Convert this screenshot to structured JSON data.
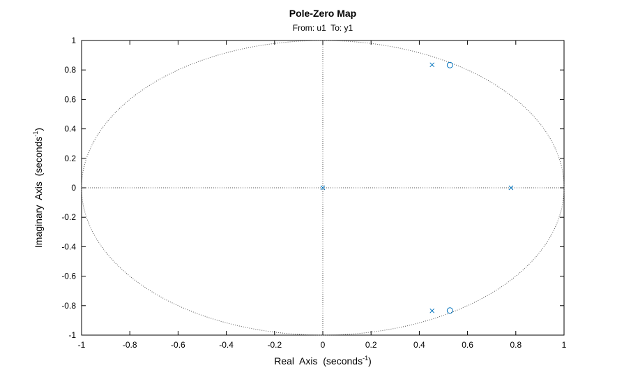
{
  "chart_data": {
    "type": "scatter",
    "title": "Pole-Zero Map",
    "subtitle": "From: u1  To: y1",
    "xlabel": {
      "text": "Real  Axis  (seconds",
      "superscript": "-1",
      "suffix": ")"
    },
    "ylabel": {
      "text": "Imaginary  Axis  (seconds",
      "superscript": "-1",
      "suffix": ")"
    },
    "xlim": [
      -1,
      1
    ],
    "ylim": [
      -1,
      1
    ],
    "xticks": [
      -1,
      -0.8,
      -0.6,
      -0.4,
      -0.2,
      0,
      0.2,
      0.4,
      0.6,
      0.8,
      1
    ],
    "xtick_labels": [
      "-1",
      "-0.8",
      "-0.6",
      "-0.4",
      "-0.2",
      "0",
      "0.2",
      "0.4",
      "0.6",
      "0.8",
      "1"
    ],
    "yticks": [
      -1,
      -0.8,
      -0.6,
      -0.4,
      -0.2,
      0,
      0.2,
      0.4,
      0.6,
      0.8,
      1
    ],
    "ytick_labels": [
      "-1",
      "-0.8",
      "-0.6",
      "-0.4",
      "-0.2",
      "0",
      "0.2",
      "0.4",
      "0.6",
      "0.8",
      "1"
    ],
    "grid": false,
    "unit_circle": true,
    "marker_color": "#0072BD",
    "series": [
      {
        "marker": "x",
        "points": [
          {
            "x": 0,
            "y": 0
          },
          {
            "x": 0.453,
            "y": 0.835
          },
          {
            "x": 0.453,
            "y": -0.835
          },
          {
            "x": 0.78,
            "y": 0
          }
        ]
      },
      {
        "marker": "o",
        "points": [
          {
            "x": 0.527,
            "y": 0.833
          },
          {
            "x": 0.527,
            "y": -0.833
          }
        ]
      }
    ]
  }
}
